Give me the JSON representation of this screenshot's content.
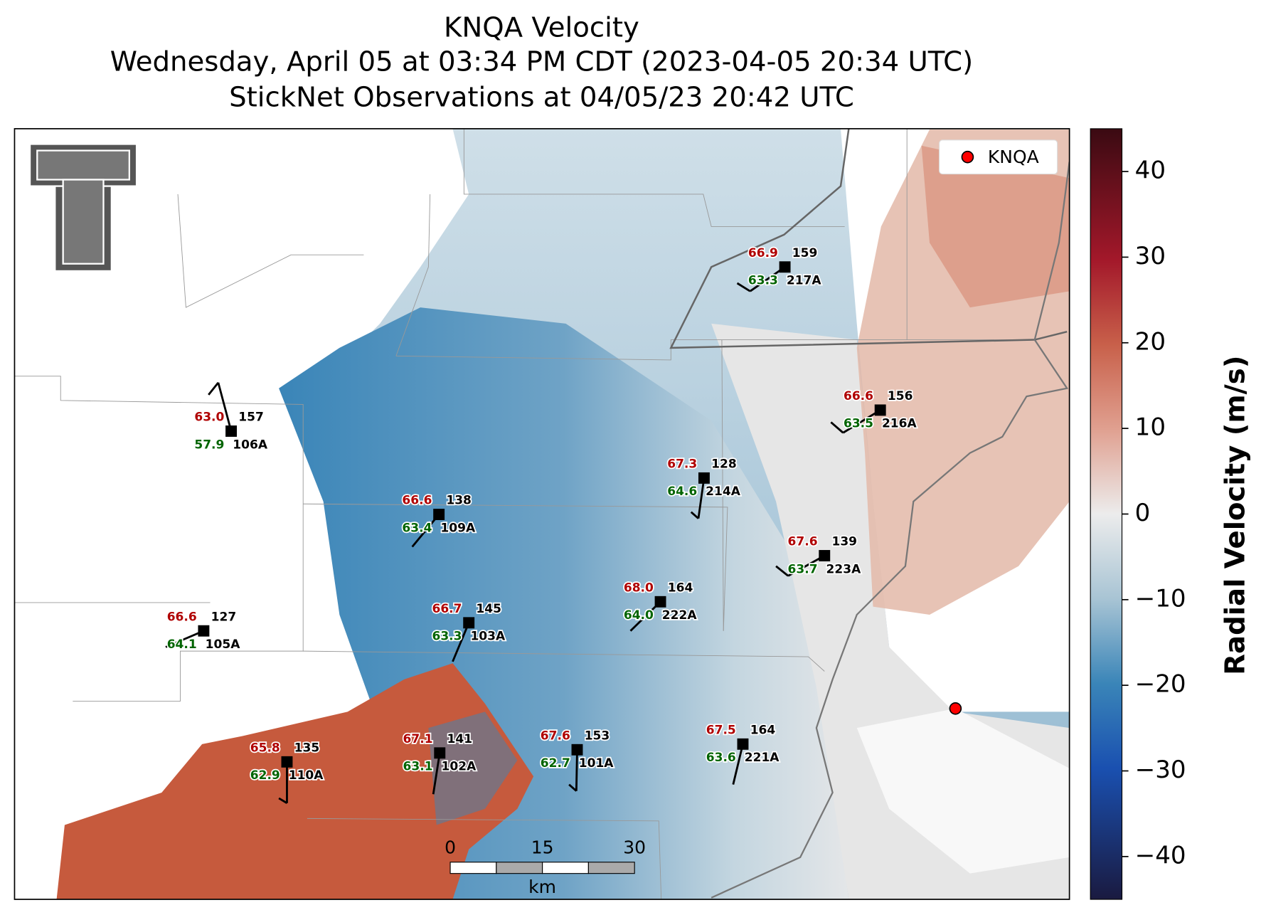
{
  "header": {
    "title": "KNQA Velocity",
    "subtitle": "Wednesday, April 05 at 03:34 PM CDT (2023-04-05 20:34 UTC)",
    "observations": "StickNet Observations at 04/05/23 20:42 UTC"
  },
  "legend": {
    "label": "KNQA",
    "color": "#ff0000"
  },
  "colorbar": {
    "label": "Radial Velocity (m/s)",
    "lim": [
      -45,
      45
    ],
    "ticks": [
      {
        "value": -40,
        "label": "−40"
      },
      {
        "value": -30,
        "label": "−30"
      },
      {
        "value": -20,
        "label": "−20"
      },
      {
        "value": -10,
        "label": "−10"
      },
      0,
      10,
      20,
      30,
      40
    ]
  },
  "scale_bar": {
    "labels": [
      "0",
      "15",
      "30"
    ],
    "unit": "km"
  },
  "stations": [
    {
      "id": "106A",
      "temperature": "63.0",
      "dewpoint": "57.9",
      "value": "157"
    },
    {
      "id": "109A",
      "temperature": "66.6",
      "dewpoint": "63.4",
      "value": "138"
    },
    {
      "id": "103A",
      "temperature": "66.7",
      "dewpoint": "63.3",
      "value": "145"
    },
    {
      "id": "105A",
      "temperature": "66.6",
      "dewpoint": "64.1",
      "value": "127"
    },
    {
      "id": "110A",
      "temperature": "65.8",
      "dewpoint": "62.9",
      "value": "135"
    },
    {
      "id": "102A",
      "temperature": "67.1",
      "dewpoint": "63.1",
      "value": "141"
    },
    {
      "id": "101A",
      "temperature": "67.6",
      "dewpoint": "62.7",
      "value": "153"
    },
    {
      "id": "214A",
      "temperature": "67.3",
      "dewpoint": "64.6",
      "value": "128"
    },
    {
      "id": "222A",
      "temperature": "68.0",
      "dewpoint": "64.0",
      "value": "164"
    },
    {
      "id": "223A",
      "temperature": "67.6",
      "dewpoint": "63.7",
      "value": "139"
    },
    {
      "id": "221A",
      "temperature": "67.5",
      "dewpoint": "63.6",
      "value": "164"
    },
    {
      "id": "217A",
      "temperature": "66.9",
      "dewpoint": "63.3",
      "value": "159"
    },
    {
      "id": "216A",
      "temperature": "66.6",
      "dewpoint": "63.5",
      "value": "156"
    }
  ]
}
